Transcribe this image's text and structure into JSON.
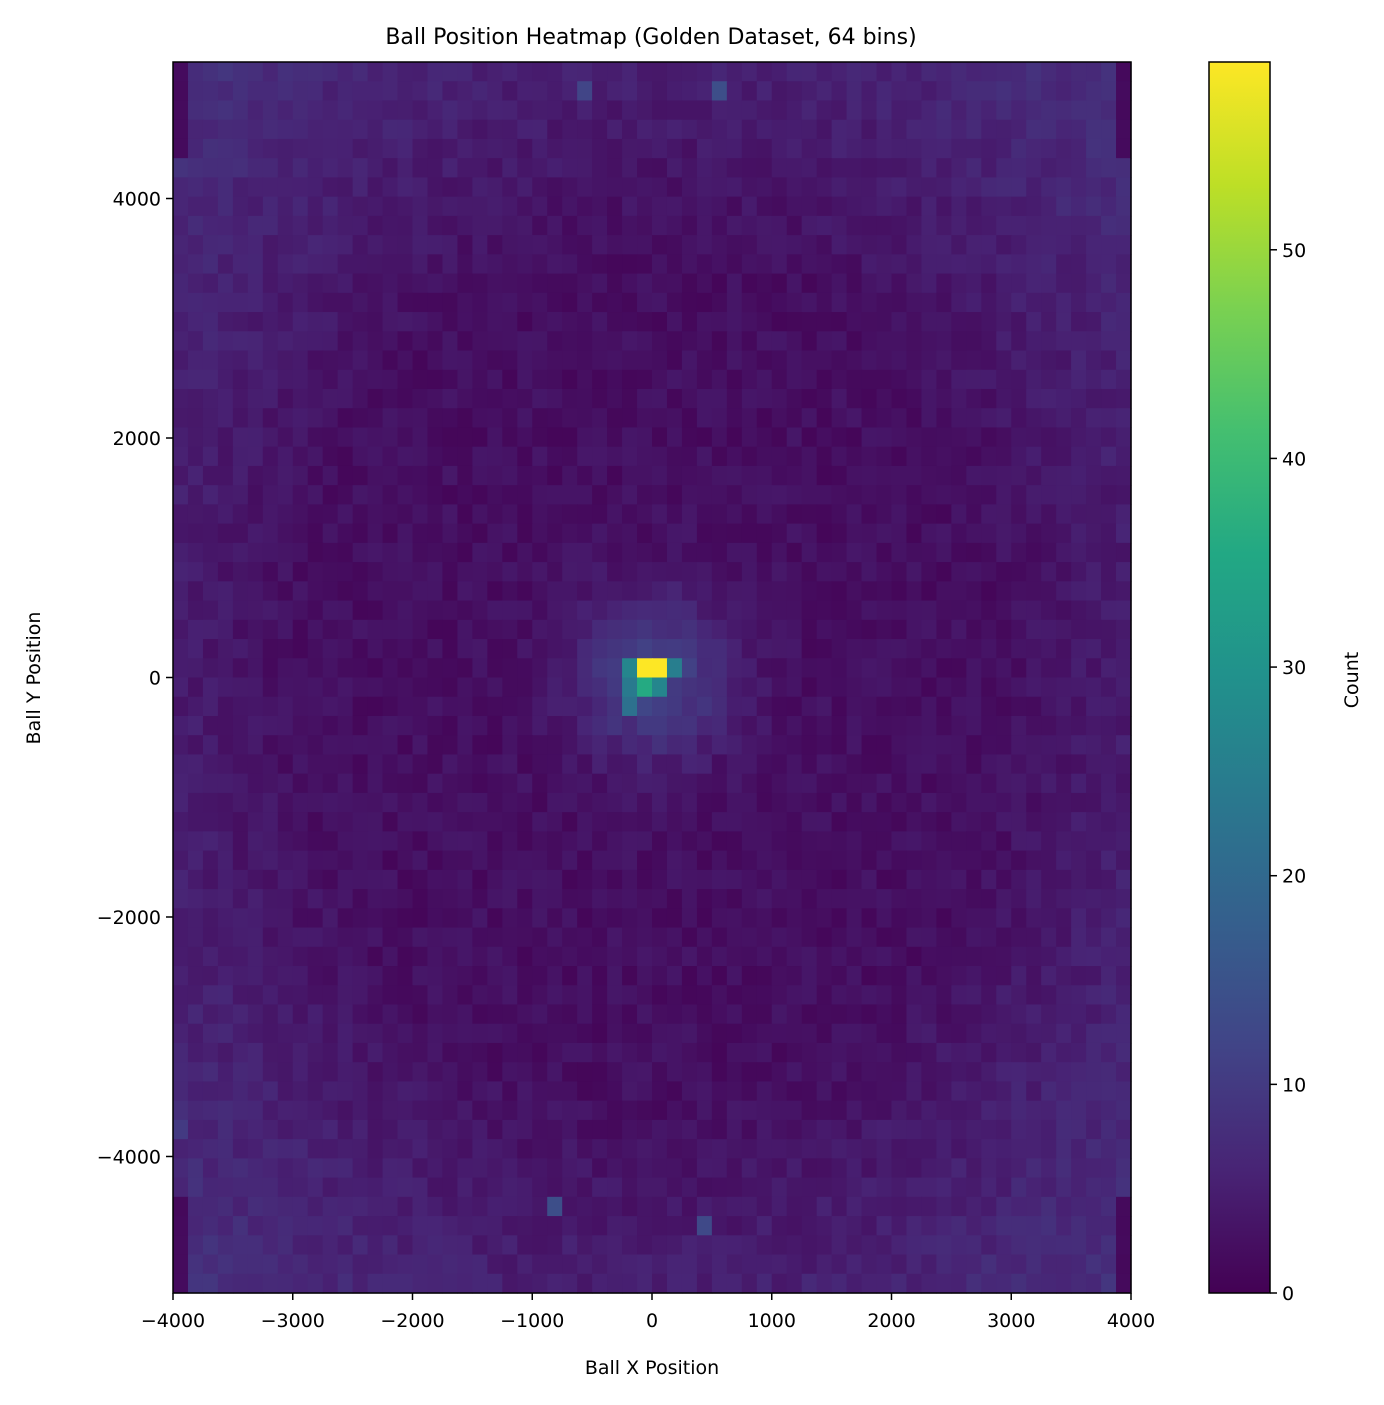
{
  "chart_data": {
    "type": "heatmap",
    "title": "Ball Position Heatmap (Golden Dataset, 64 bins)",
    "xlabel": "Ball X Position",
    "ylabel": "Ball Y Position",
    "xlim": [
      -4000,
      4000
    ],
    "ylim": [
      -5140,
      5140
    ],
    "bins": 64,
    "x_ticks": [
      -4000,
      -3000,
      -2000,
      -1000,
      0,
      1000,
      2000,
      3000,
      4000
    ],
    "x_tick_labels": [
      "−4000",
      "−3000",
      "−2000",
      "−1000",
      "0",
      "1000",
      "2000",
      "3000",
      "4000"
    ],
    "y_ticks": [
      -4000,
      -2000,
      0,
      2000,
      4000
    ],
    "y_tick_labels": [
      "−4000",
      "−2000",
      "0",
      "2000",
      "4000"
    ],
    "colorbar": {
      "label": "Count",
      "min": 0,
      "max": 59,
      "ticks": [
        0,
        10,
        20,
        30,
        40,
        50
      ],
      "tick_labels": [
        "0",
        "10",
        "20",
        "30",
        "40",
        "50"
      ],
      "colormap": "viridis"
    },
    "notable_cells": [
      {
        "x": -62,
        "y": 80,
        "count": 59
      },
      {
        "x": 62,
        "y": 80,
        "count": 59
      },
      {
        "x": -62,
        "y": -80,
        "count": 36
      },
      {
        "x": 62,
        "y": -80,
        "count": 27
      },
      {
        "x": -187,
        "y": 80,
        "count": 27
      },
      {
        "x": 187,
        "y": 80,
        "count": 25
      },
      {
        "x": -187,
        "y": -80,
        "count": 24
      },
      {
        "x": -187,
        "y": -241,
        "count": 22
      },
      {
        "x": 562,
        "y": 4900,
        "count": 14
      },
      {
        "x": 437,
        "y": -4579,
        "count": 13
      },
      {
        "x": -812,
        "y": -4418,
        "count": 14
      },
      {
        "x": -562,
        "y": 4900,
        "count": 12
      },
      {
        "x": -3937,
        "y": -3775,
        "count": 10
      }
    ]
  }
}
